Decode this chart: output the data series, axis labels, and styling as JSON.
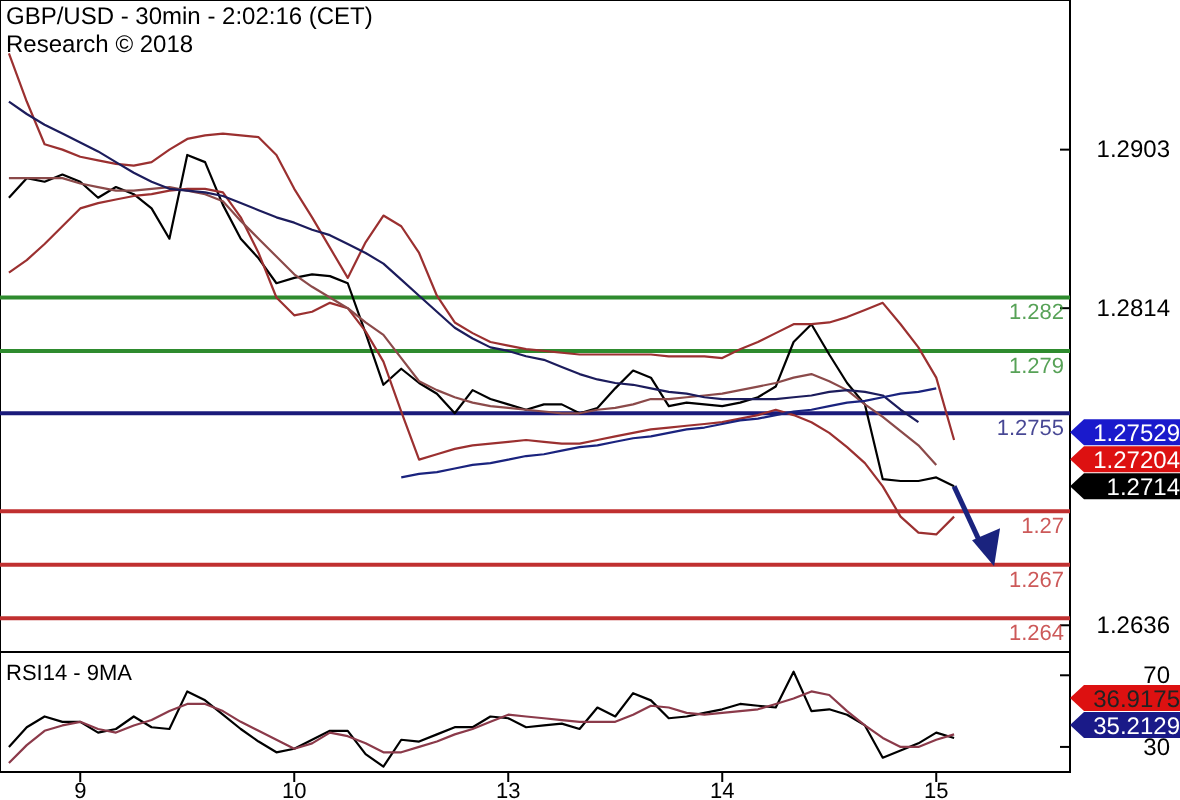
{
  "chart_data": [
    {
      "type": "line",
      "title": "GBP/USD - 30min - 2:02:16 (CET)",
      "subtitle": "Research © 2018",
      "categories": [
        null,
        null,
        null,
        null,
        "9",
        null,
        null,
        null,
        null,
        null,
        null,
        null,
        null,
        null,
        null,
        null,
        "10",
        null,
        null,
        null,
        null,
        null,
        null,
        null,
        null,
        null,
        null,
        null,
        "13",
        null,
        null,
        null,
        null,
        null,
        null,
        null,
        null,
        null,
        null,
        null,
        "14",
        null,
        null,
        null,
        null,
        null,
        null,
        null,
        null,
        null,
        null,
        null,
        "15",
        null,
        null,
        null,
        null,
        null,
        null,
        null
      ],
      "ylim": [
        1.2621,
        1.2987
      ],
      "yticks": [
        1.2903,
        1.2814,
        1.2636
      ],
      "tick_labels": "y",
      "grid": false,
      "series": [
        {
          "color": "#000000",
          "values": [
            1.2876,
            1.2887,
            1.2885,
            1.2889,
            1.2885,
            1.2876,
            1.2882,
            1.2878,
            1.287,
            1.2853,
            1.29,
            1.2896,
            1.2872,
            1.2853,
            1.2842,
            1.2828,
            1.2831,
            1.2833,
            1.2832,
            1.2828,
            1.28,
            1.2771,
            1.278,
            1.2772,
            1.2766,
            1.2755,
            1.2768,
            1.2763,
            1.276,
            1.2757,
            1.276,
            1.276,
            1.2755,
            1.2758,
            1.2769,
            1.2779,
            1.2775,
            1.2759,
            1.2761,
            1.276,
            1.2759,
            1.2761,
            1.2764,
            1.277,
            1.2795,
            1.2805,
            1.2788,
            1.2772,
            1.276,
            1.2718,
            1.2717,
            1.2717,
            1.2719,
            1.2714,
            null,
            null,
            null,
            null,
            null,
            null
          ]
        },
        {
          "color": "#9b3030",
          "values": [
            1.2957,
            1.293,
            1.2906,
            1.2903,
            1.2899,
            1.2897,
            1.2895,
            1.2894,
            1.2896,
            1.2903,
            1.2909,
            1.2911,
            1.2912,
            1.2911,
            1.291,
            1.29,
            1.2881,
            1.2865,
            1.2848,
            1.2831,
            1.2851,
            1.2866,
            1.286,
            1.2845,
            1.2821,
            1.2806,
            1.28,
            1.2795,
            1.2793,
            1.2791,
            1.279,
            1.2789,
            1.2788,
            1.2788,
            1.2788,
            1.2788,
            1.2788,
            1.2787,
            1.2787,
            1.2787,
            1.2786,
            1.2791,
            1.2795,
            1.28,
            1.2805,
            1.2805,
            1.2806,
            1.2809,
            1.2813,
            1.2817,
            1.2805,
            1.2792,
            1.2775,
            1.274,
            null,
            null,
            null,
            null,
            null,
            null
          ]
        },
        {
          "color": "#9b3030",
          "values": [
            1.2834,
            1.2841,
            1.285,
            1.286,
            1.287,
            1.2873,
            1.2875,
            1.2877,
            1.2878,
            1.288,
            1.2881,
            1.2881,
            1.2879,
            1.2865,
            1.2845,
            1.282,
            1.281,
            1.2812,
            1.2817,
            1.2814,
            1.2801,
            1.2784,
            1.2756,
            1.2729,
            1.2732,
            1.2735,
            1.2737,
            1.2738,
            1.2739,
            1.274,
            1.2739,
            1.2738,
            1.2738,
            1.274,
            1.2742,
            1.2744,
            1.2746,
            1.2747,
            1.2748,
            1.2749,
            1.275,
            1.2752,
            1.2754,
            1.2757,
            1.2754,
            1.275,
            1.2744,
            1.2736,
            1.2727,
            1.2714,
            1.2697,
            1.2688,
            1.2687,
            1.2697,
            null,
            null,
            null,
            null,
            null,
            null
          ]
        },
        {
          "color": "#8b4a4a",
          "values": [
            1.2887,
            1.2887,
            1.2887,
            1.2887,
            1.2884,
            1.2882,
            1.288,
            1.288,
            1.2881,
            1.2882,
            1.288,
            1.2878,
            1.2874,
            1.2863,
            1.2853,
            1.2843,
            1.2833,
            1.2826,
            1.282,
            1.2814,
            1.2806,
            1.2799,
            1.2786,
            1.2773,
            1.2768,
            1.2764,
            1.2761,
            1.2759,
            1.2758,
            1.2757,
            1.2756,
            1.2755,
            1.2755,
            1.2757,
            1.2758,
            1.276,
            1.2763,
            1.2763,
            1.2764,
            1.2765,
            1.2766,
            1.2768,
            1.277,
            1.2772,
            1.2775,
            1.2777,
            1.2773,
            1.2768,
            1.276,
            1.2753,
            1.2745,
            1.2737,
            1.2726,
            null,
            null,
            null,
            null,
            null,
            null,
            null
          ]
        },
        {
          "color": "#1c1c5c",
          "values": [
            1.293,
            1.2923,
            1.2917,
            1.2912,
            1.2907,
            1.2902,
            1.2896,
            1.289,
            1.2885,
            1.2881,
            1.288,
            1.2879,
            1.2877,
            1.2873,
            1.2869,
            1.2865,
            1.2862,
            1.2858,
            1.2855,
            1.285,
            1.2845,
            1.2839,
            1.283,
            1.2821,
            1.2812,
            1.2803,
            1.2797,
            1.2792,
            1.279,
            1.2787,
            1.2785,
            1.2781,
            1.2777,
            1.2774,
            1.2772,
            1.2771,
            1.2769,
            1.2767,
            1.2766,
            1.2764,
            1.2763,
            1.2763,
            1.2763,
            1.2763,
            1.2764,
            1.2765,
            1.2767,
            1.2768,
            1.2767,
            1.2765,
            1.2757,
            1.275,
            null,
            null,
            null,
            null,
            null,
            null,
            null,
            null
          ]
        },
        {
          "color": "#1a237e",
          "values": [
            null,
            null,
            null,
            null,
            null,
            null,
            null,
            null,
            null,
            null,
            null,
            null,
            null,
            null,
            null,
            null,
            null,
            null,
            null,
            null,
            null,
            null,
            1.2719,
            1.2721,
            1.2722,
            1.2724,
            1.2726,
            1.2727,
            1.2729,
            1.2731,
            1.2732,
            1.2734,
            1.2736,
            1.2737,
            1.2739,
            1.2741,
            1.2742,
            1.2744,
            1.2746,
            1.2747,
            1.2749,
            1.2751,
            1.2752,
            1.2754,
            1.2756,
            1.2757,
            1.2759,
            1.2761,
            1.2762,
            1.2764,
            1.2766,
            1.2767,
            1.2769,
            null,
            null,
            null,
            null,
            null,
            null,
            null
          ]
        }
      ],
      "ref_lines": [
        {
          "axis": "y",
          "value": 1.282,
          "label": "1.282",
          "color": "#2e8b2e"
        },
        {
          "axis": "y",
          "value": 1.279,
          "label": "1.279",
          "color": "#2e8b2e"
        },
        {
          "axis": "y",
          "value": 1.2755,
          "label": "1.2755",
          "color": "#1a1a7a"
        },
        {
          "axis": "y",
          "value": 1.27,
          "label": "1.27",
          "color": "#c03030"
        },
        {
          "axis": "y",
          "value": 1.267,
          "label": "1.267",
          "color": "#c03030"
        },
        {
          "axis": "y",
          "value": 1.264,
          "label": "1.264",
          "color": "#c03030"
        }
      ],
      "annotations": [
        "1.27529",
        "1.27204",
        "1.2714"
      ]
    },
    {
      "type": "line",
      "title": "RSI14 - 9MA",
      "categories": [
        null,
        null,
        null,
        null,
        "9",
        null,
        null,
        null,
        null,
        null,
        null,
        null,
        null,
        null,
        null,
        null,
        "10",
        null,
        null,
        null,
        null,
        null,
        null,
        null,
        null,
        null,
        null,
        null,
        "13",
        null,
        null,
        null,
        null,
        null,
        null,
        null,
        null,
        null,
        null,
        null,
        "14",
        null,
        null,
        null,
        null,
        null,
        null,
        null,
        null,
        null,
        null,
        null,
        "15",
        null,
        null,
        null,
        null,
        null,
        null,
        null
      ],
      "ylim": [
        16,
        83
      ],
      "yticks": [
        70,
        30
      ],
      "grid": false,
      "series": [
        {
          "color": "#000000",
          "values": [
            30,
            41,
            47,
            44,
            44,
            38,
            40,
            47,
            41,
            40,
            61,
            56,
            48,
            40,
            33,
            27,
            29,
            34,
            39,
            39,
            26,
            19,
            34,
            33,
            37,
            41,
            41,
            47,
            46,
            41,
            42,
            43,
            40,
            52,
            47,
            60,
            56,
            46,
            47,
            49,
            51,
            54,
            53,
            52,
            72,
            50,
            51,
            48,
            42,
            24,
            28,
            32,
            38,
            35,
            null,
            null,
            null,
            null,
            null,
            null
          ]
        },
        {
          "color": "#8b3a4a",
          "values": [
            21,
            31,
            39,
            42,
            44,
            40,
            38,
            42,
            45,
            50,
            54,
            54,
            50,
            44,
            39,
            34,
            29,
            32,
            38,
            36,
            32,
            27,
            27,
            30,
            33,
            37,
            40,
            44,
            48,
            47,
            46,
            45,
            44,
            44,
            44,
            48,
            53,
            52,
            49,
            48,
            49,
            50,
            51,
            54,
            57,
            61,
            59,
            50,
            42,
            35,
            30,
            30,
            34,
            37,
            null,
            null,
            null,
            null,
            null,
            null
          ]
        }
      ],
      "annotations": [
        "36.9175",
        "35.2129"
      ]
    }
  ]
}
